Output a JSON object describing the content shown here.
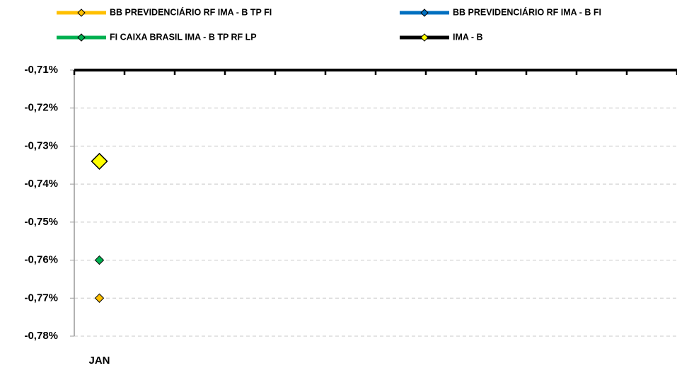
{
  "chart_data": {
    "type": "line",
    "categories": [
      "JAN",
      null,
      null,
      null,
      null,
      null,
      null,
      null,
      null,
      null,
      null,
      null
    ],
    "series": [
      {
        "name": "BB PREVIDENCIÁRIO RF IMA - B TP FI",
        "color": "#ffc000",
        "marker_color": "#ffc000",
        "values": [
          -0.77,
          null,
          null,
          null,
          null,
          null,
          null,
          null,
          null,
          null,
          null,
          null
        ]
      },
      {
        "name": "BB PREVIDENCIÁRIO RF IMA - B FI",
        "color": "#0070c0",
        "marker_color": "#0070c0",
        "values": [
          null,
          null,
          null,
          null,
          null,
          null,
          null,
          null,
          null,
          null,
          null,
          null
        ]
      },
      {
        "name": "FI CAIXA BRASIL IMA - B TP RF LP",
        "color": "#00b050",
        "marker_color": "#00b050",
        "values": [
          -0.76,
          null,
          null,
          null,
          null,
          null,
          null,
          null,
          null,
          null,
          null,
          null
        ]
      },
      {
        "name": "IMA - B",
        "color": "#000000",
        "marker_color": "#ffff00",
        "values": [
          -0.734,
          null,
          null,
          null,
          null,
          null,
          null,
          null,
          null,
          null,
          null,
          null
        ]
      }
    ],
    "ylim": [
      -0.78,
      -0.71
    ],
    "yticks": [
      {
        "value": -0.71,
        "label": "-0,71%"
      },
      {
        "value": -0.72,
        "label": "-0,72%"
      },
      {
        "value": -0.73,
        "label": "-0,73%"
      },
      {
        "value": -0.74,
        "label": "-0,74%"
      },
      {
        "value": -0.75,
        "label": "-0,75%"
      },
      {
        "value": -0.76,
        "label": "-0,76%"
      },
      {
        "value": -0.77,
        "label": "-0,77%"
      },
      {
        "value": -0.78,
        "label": "-0,78%"
      }
    ],
    "grid": true
  }
}
